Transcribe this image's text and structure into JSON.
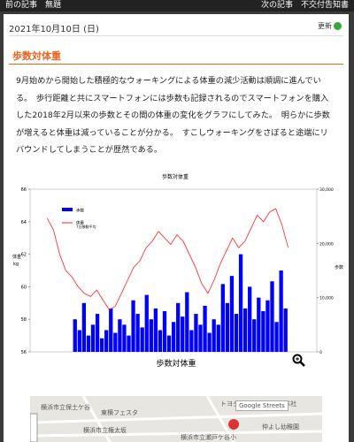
{
  "nav": {
    "prev": "前の記事　無題",
    "next": "次の記事　不交付告知書"
  },
  "article": {
    "date": "2021年10月10日 (日)",
    "update": "更新",
    "heading": "歩数対体重",
    "body": "9月始めから開始した積極的なウォーキングによる体重の減少活動は順調に進んでいる。　歩行距離と共にスマートフォンには歩数も記録されるのでスマートフォンを購入した2018年2月以来の歩数とその間の体重の変化をグラフにしてみた。　明らかに歩数が増えると体重は減っていることが分かる。　すこしウォーキングをさぼると途端にリバウンドしてしまうことが歴然である。",
    "caption": "歩数対体重"
  },
  "chart_data": {
    "type": "bar-line",
    "title": "歩数対体重",
    "ylabel": "体重",
    "ylabel_unit": "kg",
    "y2label": "歩数",
    "ylim": [
      56,
      66
    ],
    "yticks": [
      56,
      58,
      60,
      62,
      64,
      66
    ],
    "y2lim": [
      0,
      30000
    ],
    "y2ticks": [
      0,
      {
        "value": 10000,
        "label": "10,000"
      },
      {
        "value": 20000,
        "label": "20,000"
      },
      {
        "value": 30000,
        "label": "30,000"
      }
    ],
    "legend_notes": [
      "7日移動平均"
    ],
    "series": [
      {
        "name": "歩数",
        "color": "#0000ff",
        "axis": "y2",
        "kind": "bar",
        "values": [
          6000,
          4000,
          9000,
          3000,
          5000,
          7000,
          2500,
          4000,
          8000,
          3500,
          6000,
          5000,
          3000,
          9500,
          7000,
          4500,
          10500,
          6000,
          8000,
          4000,
          7500,
          3000,
          5500,
          9000,
          6500,
          11000,
          4000,
          7000,
          5000,
          8500,
          3500,
          6000,
          5000,
          12500,
          9000,
          14000,
          7000,
          18000,
          8000,
          12000,
          6000,
          10000,
          7500,
          9500,
          13000,
          5500,
          15000,
          8000
        ]
      },
      {
        "name": "体重",
        "color": "#ff2020",
        "kind": "line",
        "values": [
          64.2,
          63.5,
          62.0,
          61.0,
          60.6,
          60.0,
          59.6,
          59.4,
          59.8,
          59.2,
          58.6,
          58.8,
          59.6,
          60.4,
          61.2,
          61.6,
          62.4,
          62.8,
          63.4,
          63.0,
          62.6,
          63.2,
          62.8,
          62.0,
          61.2,
          60.2,
          59.6,
          60.4,
          61.4,
          62.2,
          63.0,
          62.4,
          62.8,
          63.6,
          64.4,
          64.0,
          64.6,
          64.8,
          63.8,
          62.4
        ]
      }
    ]
  },
  "map": {
    "layer": "Google Streets",
    "labels": [
      "トヨタカローラ神奈川 本社",
      "東横フェスタ",
      "横浜市立保土ケ谷",
      "仲よし幼稚園",
      "横浜市立権太坂",
      "横浜市立瀬戸ケ谷小"
    ]
  }
}
